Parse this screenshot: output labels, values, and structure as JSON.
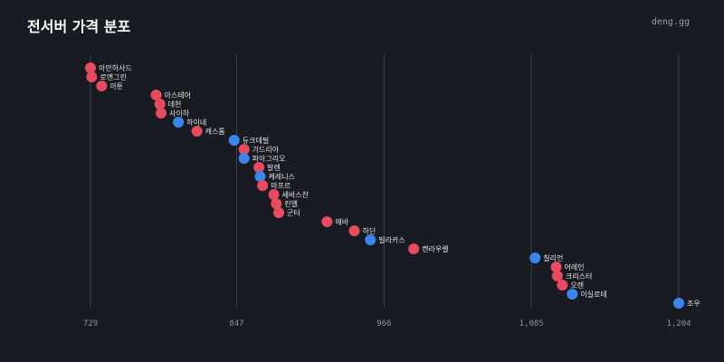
{
  "title": "전서버 가격 분포",
  "brand": "deng.gg",
  "colors": {
    "red": "#e84a5f",
    "blue": "#3a86ef",
    "background": "#181b21",
    "grid": "#3a3f48"
  },
  "chart_data": {
    "type": "scatter",
    "title": "전서버 가격 분포",
    "xlim": [
      729,
      1204
    ],
    "xticks": [
      729,
      847,
      966,
      1085,
      1204
    ],
    "xtick_labels": [
      "729",
      "847",
      "966",
      "1,085",
      "1,204"
    ],
    "grid": "vertical",
    "series": [
      {
        "color": "red",
        "points": [
          {
            "label": "아만하사드",
            "value": 729
          },
          {
            "label": "로엔그린",
            "value": 730
          },
          {
            "label": "아툰",
            "value": 738
          },
          {
            "label": "아스테어",
            "value": 782
          },
          {
            "label": "데헌",
            "value": 785
          },
          {
            "label": "사이하",
            "value": 786
          },
          {
            "label": "캐스톰",
            "value": 815
          },
          {
            "label": "가드리아",
            "value": 853
          },
          {
            "label": "발렌",
            "value": 865
          },
          {
            "label": "마프르",
            "value": 868
          },
          {
            "label": "세바스찬",
            "value": 877
          },
          {
            "label": "린엘",
            "value": 879
          },
          {
            "label": "군터",
            "value": 881
          },
          {
            "label": "에바",
            "value": 920
          },
          {
            "label": "하딘",
            "value": 942
          },
          {
            "label": "켄라우렐",
            "value": 990
          },
          {
            "label": "어레인",
            "value": 1105
          },
          {
            "label": "크리스터",
            "value": 1106
          },
          {
            "label": "오렌",
            "value": 1110
          }
        ]
      },
      {
        "color": "blue",
        "points": [
          {
            "label": "하이네",
            "value": 800
          },
          {
            "label": "듀크데필",
            "value": 845
          },
          {
            "label": "파아그리오",
            "value": 853
          },
          {
            "label": "케레니스",
            "value": 866
          },
          {
            "label": "빌라카스",
            "value": 955
          },
          {
            "label": "칠리언",
            "value": 1088
          },
          {
            "label": "이실로테",
            "value": 1118
          },
          {
            "label": "조우",
            "value": 1204
          }
        ]
      }
    ]
  }
}
